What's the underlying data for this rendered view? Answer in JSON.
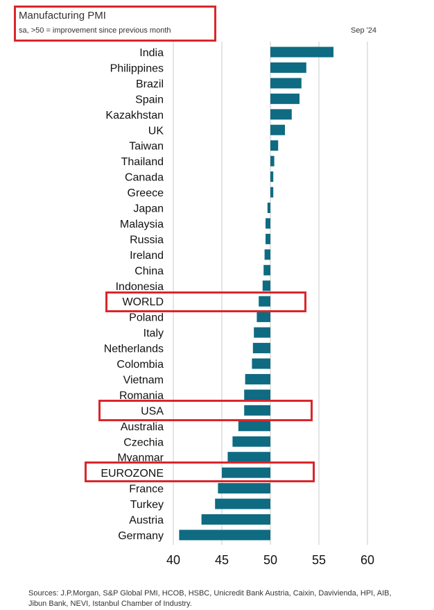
{
  "chart_data": {
    "type": "bar",
    "orientation": "horizontal",
    "title": "Manufacturing PMI",
    "subtitle": "sa, >50 = improvement since previous month",
    "date_label": "Sep '24",
    "baseline": 50,
    "xlim": [
      40,
      60
    ],
    "xticks": [
      40,
      45,
      50,
      55,
      60
    ],
    "grid": "vertical",
    "bar_color": "#0e6b82",
    "highlight_color": "#d9262c",
    "highlighted": [
      "WORLD",
      "USA",
      "EUROZONE"
    ],
    "categories": [
      "India",
      "Philippines",
      "Brazil",
      "Spain",
      "Kazakhstan",
      "UK",
      "Taiwan",
      "Thailand",
      "Canada",
      "Greece",
      "Japan",
      "Malaysia",
      "Russia",
      "Ireland",
      "China",
      "Indonesia",
      "WORLD",
      "Poland",
      "Italy",
      "Netherlands",
      "Colombia",
      "Vietnam",
      "Romania",
      "USA",
      "Australia",
      "Czechia",
      "Myanmar",
      "EUROZONE",
      "France",
      "Turkey",
      "Austria",
      "Germany"
    ],
    "values": [
      56.5,
      53.7,
      53.2,
      53.0,
      52.2,
      51.5,
      50.8,
      50.4,
      50.3,
      50.3,
      49.7,
      49.5,
      49.5,
      49.4,
      49.3,
      49.2,
      48.8,
      48.6,
      48.3,
      48.2,
      48.1,
      47.4,
      47.3,
      47.3,
      46.7,
      46.1,
      45.6,
      45.0,
      44.6,
      44.3,
      42.9,
      40.6
    ]
  },
  "source_text": "Sources: J.P.Morgan, S&P Global PMI, HCOB, HSBC, Unicredit Bank Austria, Caixin, Davivienda, HPI, AIB, Jibun Bank, NEVI, Istanbul Chamber of Industry."
}
